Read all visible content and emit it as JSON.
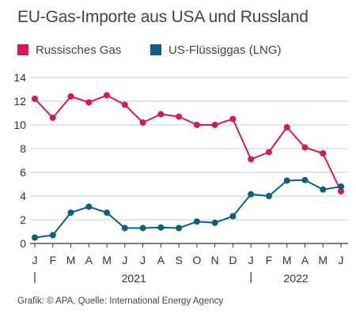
{
  "chart_data": {
    "type": "line",
    "title": "EU-Gas-Importe aus USA und Russland",
    "x": [
      "J",
      "F",
      "M",
      "A",
      "M",
      "J",
      "J",
      "A",
      "S",
      "O",
      "N",
      "D",
      "J",
      "F",
      "M",
      "A",
      "M",
      "J"
    ],
    "year_labels": [
      {
        "label": "2021",
        "from_index": 0,
        "to_index": 11
      },
      {
        "label": "2022",
        "from_index": 12,
        "to_index": 17
      }
    ],
    "ylim": [
      0,
      14
    ],
    "yticks": [
      0,
      2,
      4,
      6,
      8,
      10,
      12,
      14
    ],
    "grid": true,
    "legend": "top-left",
    "series": [
      {
        "name": "Russisches Gas",
        "color": "#d6185a",
        "values": [
          12.2,
          10.6,
          12.4,
          11.9,
          12.5,
          11.7,
          10.2,
          10.9,
          10.7,
          10.0,
          10.0,
          10.5,
          7.1,
          7.7,
          9.8,
          8.1,
          7.6,
          4.4
        ]
      },
      {
        "name": "US-Flüssiggas (LNG)",
        "color": "#0e5e80",
        "values": [
          0.5,
          0.7,
          2.6,
          3.1,
          2.6,
          1.3,
          1.3,
          1.35,
          1.3,
          1.85,
          1.75,
          2.3,
          4.15,
          4.0,
          5.3,
          5.35,
          4.55,
          4.8
        ]
      }
    ]
  },
  "source": "Grafik: © APA, Quelle: International Energy Agency"
}
